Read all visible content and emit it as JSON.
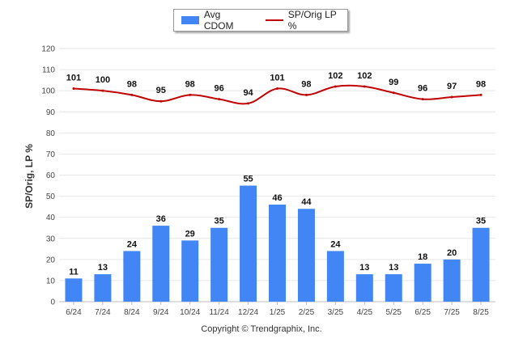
{
  "chart_data": {
    "type": "bar",
    "categories": [
      "6/24",
      "7/24",
      "8/24",
      "9/24",
      "10/24",
      "11/24",
      "12/24",
      "1/25",
      "2/25",
      "3/25",
      "4/25",
      "5/25",
      "6/25",
      "7/25",
      "8/25"
    ],
    "series": [
      {
        "name": "Avg CDOM",
        "type": "bar",
        "values": [
          11,
          13,
          24,
          36,
          29,
          35,
          55,
          46,
          44,
          24,
          13,
          13,
          18,
          20,
          35
        ],
        "color": "#4285f4"
      },
      {
        "name": "SP/Orig LP %",
        "type": "line",
        "values": [
          101,
          100,
          98,
          95,
          98,
          96,
          94,
          101,
          98,
          102,
          102,
          99,
          96,
          97,
          98
        ],
        "color": "#c00000"
      }
    ],
    "ylabel": "SP/Orig, LP %",
    "ylim": [
      0,
      120
    ],
    "yticks": [
      0,
      10,
      20,
      30,
      40,
      50,
      60,
      70,
      80,
      90,
      100,
      110,
      120
    ],
    "grid": true,
    "legend_position": "top-center"
  },
  "footer": {
    "copyright": "Copyright © Trendgraphix, Inc."
  }
}
